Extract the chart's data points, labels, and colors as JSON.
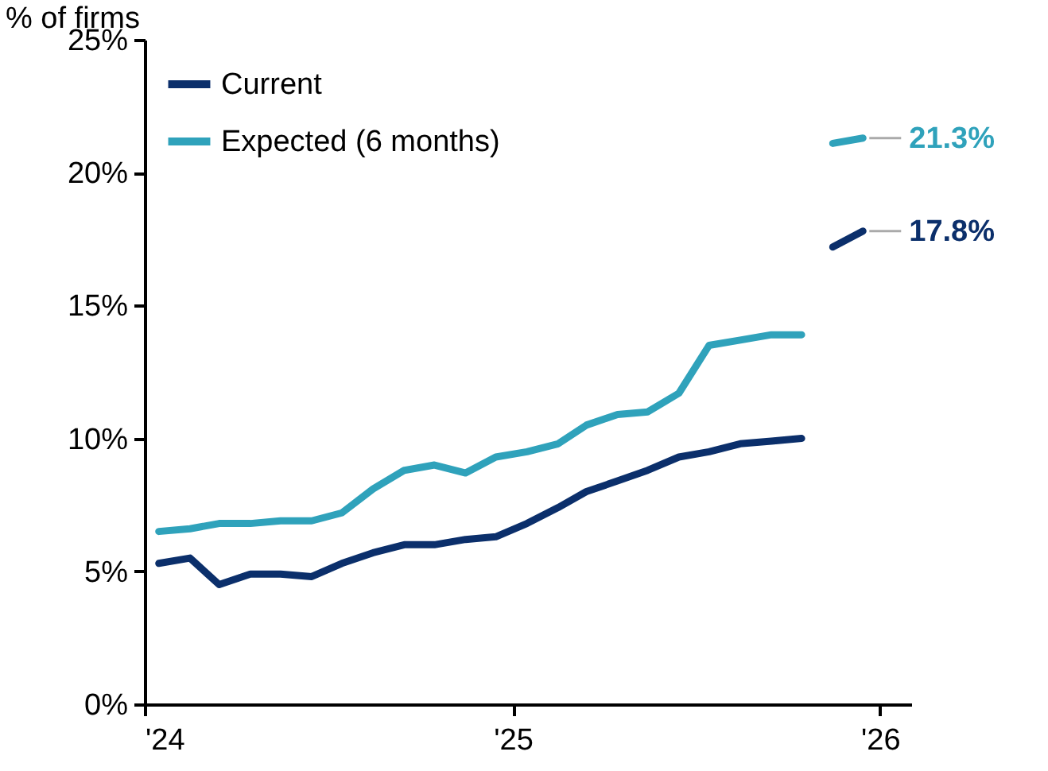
{
  "chart_data": {
    "type": "line",
    "ylabel": "% of firms",
    "x": [
      "2024-01-15",
      "2024-02-15",
      "2024-03-15",
      "2024-04-15",
      "2024-05-15",
      "2024-06-15",
      "2024-07-15",
      "2024-08-15",
      "2024-09-15",
      "2024-10-15",
      "2024-11-15",
      "2024-12-15",
      "2025-01-15",
      "2025-02-15",
      "2025-03-15",
      "2025-04-15",
      "2025-05-15",
      "2025-06-15",
      "2025-07-15",
      "2025-08-15",
      "2025-09-15",
      "2025-10-15"
    ],
    "series": [
      {
        "name": "Current",
        "color": "#0b2f6b",
        "values": [
          5.3,
          5.5,
          4.5,
          4.9,
          4.9,
          4.8,
          5.3,
          5.7,
          6.0,
          6.0,
          6.2,
          6.3,
          6.8,
          7.4,
          8.0,
          8.4,
          8.8,
          9.3,
          9.5,
          9.8,
          9.9,
          10.0
        ]
      },
      {
        "name": "Expected (6 months)",
        "color": "#2fa2bb",
        "values": [
          6.5,
          6.6,
          6.8,
          6.8,
          6.9,
          6.9,
          7.2,
          8.1,
          8.8,
          9.0,
          8.7,
          9.3,
          9.5,
          9.8,
          10.5,
          10.9,
          11.0,
          11.7,
          13.5,
          13.7,
          13.9,
          13.9
        ]
      },
      {
        "color": "#0b2f6b",
        "x": [
          "2025-11-15",
          "2025-12-15"
        ],
        "values": [
          17.2,
          17.8
        ],
        "value_labels": [
          null,
          "17.8%"
        ]
      },
      {
        "color": "#2fa2bb",
        "x": [
          "2025-11-15",
          "2025-12-15"
        ],
        "values": [
          21.1,
          21.3
        ],
        "value_labels": [
          null,
          "21.3%"
        ]
      }
    ],
    "xlim": [
      "2024-01-01",
      "2026-02-01"
    ],
    "xticks": [
      {
        "value": "2024-01-01",
        "label": "'24"
      },
      {
        "value": "2025-01-01",
        "label": "'25"
      },
      {
        "value": "2026-01-01",
        "label": "'26"
      }
    ],
    "ylim": [
      0,
      25
    ],
    "yticks": [
      {
        "value": 0,
        "label": "0%"
      },
      {
        "value": 5,
        "label": "5%"
      },
      {
        "value": 10,
        "label": "10%"
      },
      {
        "value": 15,
        "label": "15%"
      },
      {
        "value": 20,
        "label": "20%"
      },
      {
        "value": 25,
        "label": "25%"
      }
    ],
    "grid": false,
    "legend": "top left",
    "marker": "none",
    "line_style": "solid"
  }
}
